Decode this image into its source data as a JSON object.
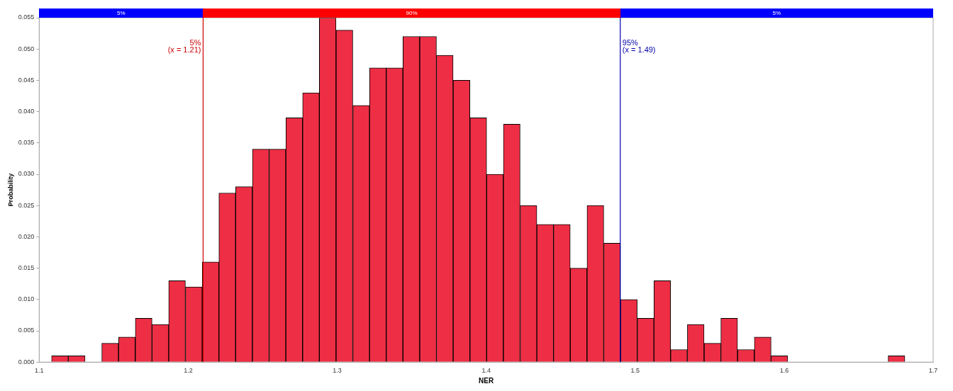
{
  "chart_data": {
    "type": "histogram",
    "xlabel": "NER",
    "ylabel": "Probability",
    "bins": [
      1.1083,
      1.1195,
      1.1308,
      1.142,
      1.1532,
      1.1645,
      1.1757,
      1.1869,
      1.1981,
      1.2094,
      1.2206,
      1.2318,
      1.2431,
      1.2543,
      1.2655,
      1.2768,
      1.288,
      1.2992,
      1.3105,
      1.3217,
      1.3329,
      1.3441,
      1.3554,
      1.3666,
      1.3778,
      1.3891,
      1.4003,
      1.4115,
      1.4228,
      1.434,
      1.4452,
      1.4564,
      1.4677,
      1.4789,
      1.4901,
      1.5014,
      1.5126,
      1.5238,
      1.535,
      1.5463,
      1.5575,
      1.5687,
      1.58,
      1.5912,
      1.6024,
      1.6137,
      1.6249,
      1.6361,
      1.6473,
      1.6586,
      1.6698,
      1.681,
      1.6923
    ],
    "values": [
      0.001,
      0.001,
      0,
      0.003,
      0.004,
      0.007,
      0.006,
      0.013,
      0.012,
      0.016,
      0.027,
      0.028,
      0.034,
      0.034,
      0.039,
      0.043,
      0.055,
      0.053,
      0.041,
      0.047,
      0.047,
      0.052,
      0.052,
      0.049,
      0.045,
      0.039,
      0.03,
      0.038,
      0.025,
      0.022,
      0.022,
      0.015,
      0.025,
      0.019,
      0.01,
      0.007,
      0.013,
      0.002,
      0.006,
      0.003,
      0.007,
      0.002,
      0.004,
      0.001,
      0,
      0,
      0,
      0,
      0,
      0,
      0.001,
      0
    ],
    "color": "#ee2e44",
    "xlim": [
      1.1,
      1.7
    ],
    "xticks": [
      1.1,
      1.2,
      1.3,
      1.4,
      1.5,
      1.6,
      1.7
    ],
    "ylim": [
      0,
      0.055
    ],
    "yticks": [
      {
        "value": 0,
        "label": "0.000"
      },
      {
        "value": 0.005,
        "label": "0.005"
      },
      {
        "value": 0.01,
        "label": "0.010"
      },
      {
        "value": 0.015,
        "label": "0.015"
      },
      {
        "value": 0.02,
        "label": "0.020"
      },
      {
        "value": 0.025,
        "label": "0.025"
      },
      {
        "value": 0.03,
        "label": "0.030"
      },
      {
        "value": 0.035,
        "label": "0.035"
      },
      {
        "value": 0.04,
        "label": "0.040"
      },
      {
        "value": 0.045,
        "label": "0.045"
      },
      {
        "value": 0.05,
        "label": "0.050"
      },
      {
        "value": 0.055,
        "label": "0.055"
      }
    ],
    "ref_lines": [
      {
        "axis": "x",
        "value": 1.21,
        "label": "5%\n(x = 1.21)",
        "color": "#cc0000"
      },
      {
        "axis": "x",
        "value": 1.49,
        "label": "95%\n(x = 1.49)",
        "color": "#0000aa"
      }
    ],
    "annotations": [
      "5%",
      "90%",
      "5%"
    ],
    "grid": false,
    "legend": false
  }
}
